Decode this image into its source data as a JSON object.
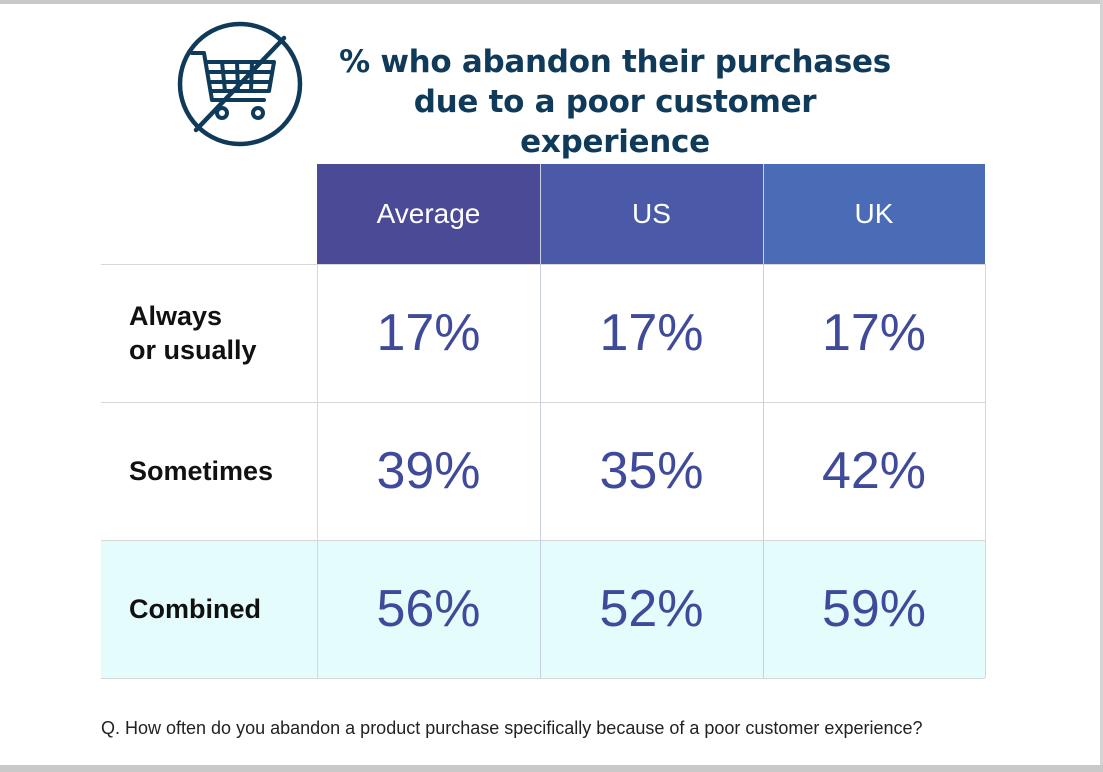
{
  "header": {
    "icon": "no-shopping-cart-icon",
    "title_line1": "% who abandon their purchases",
    "title_line2": "due to a poor customer experience"
  },
  "colors": {
    "title": "#0f3a5a",
    "header_average": "#4b4a96",
    "header_us": "#4a5aa8",
    "header_uk": "#4a6bb5",
    "value_text": "#3f4b9a",
    "combined_row_bg": "#e4fcfc",
    "grid_line": "#d7d7d7"
  },
  "chart_data": {
    "type": "table",
    "title": "% who abandon their purchases due to a poor customer experience",
    "columns": [
      "Average",
      "US",
      "UK"
    ],
    "rows": [
      {
        "label_line1": "Always",
        "label_line2": "or usually",
        "values": [
          "17%",
          "17%",
          "17%"
        ]
      },
      {
        "label_line1": "Sometimes",
        "label_line2": "",
        "values": [
          "39%",
          "35%",
          "42%"
        ]
      },
      {
        "label_line1": "Combined",
        "label_line2": "",
        "values": [
          "56%",
          "52%",
          "59%"
        ]
      }
    ]
  },
  "footnote": "Q. How often do you abandon a product purchase specifically because of a poor customer experience?"
}
